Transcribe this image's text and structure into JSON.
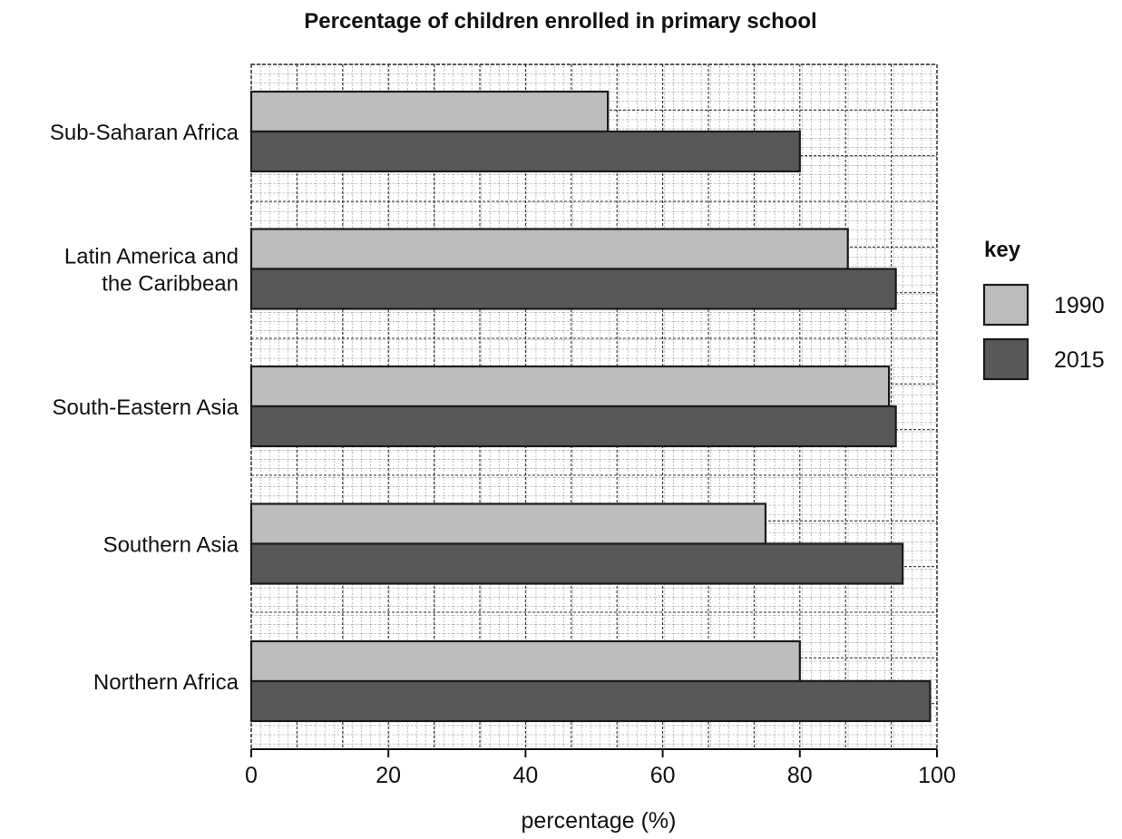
{
  "chart_data": {
    "type": "bar",
    "orientation": "horizontal",
    "title": "Percentage of children enrolled in primary school",
    "xlabel": "percentage (%)",
    "ylabel": "",
    "xlim": [
      0,
      100
    ],
    "x_ticks": [
      0,
      20,
      40,
      60,
      80,
      100
    ],
    "grid": true,
    "categories": [
      [
        "Sub-Saharan Africa"
      ],
      [
        "Latin America and",
        "the Caribbean"
      ],
      [
        "South-Eastern Asia"
      ],
      [
        "Southern Asia"
      ],
      [
        "Northern Africa"
      ]
    ],
    "series": [
      {
        "name": "1990",
        "color": "#bdbdbd",
        "values": [
          52,
          87,
          93,
          75,
          80
        ]
      },
      {
        "name": "2015",
        "color": "#58585a",
        "values": [
          80,
          94,
          94,
          95,
          99
        ]
      }
    ],
    "legend": {
      "title": "key",
      "position": "right"
    }
  }
}
